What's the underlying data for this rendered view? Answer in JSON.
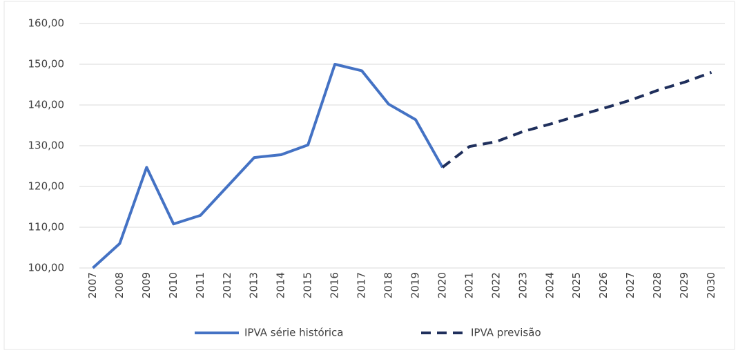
{
  "chart_data": {
    "type": "line",
    "categories": [
      "2007",
      "2008",
      "2009",
      "2010",
      "2011",
      "2012",
      "2013",
      "2014",
      "2015",
      "2016",
      "2017",
      "2018",
      "2019",
      "2020",
      "2021",
      "2022",
      "2023",
      "2024",
      "2025",
      "2026",
      "2027",
      "2028",
      "2029",
      "2030"
    ],
    "series": [
      {
        "name": "IPVA série histórica",
        "color": "#4472c4",
        "dash": false,
        "values": [
          100,
          106,
          124.7,
          110.8,
          112.9,
          120,
          127.1,
          127.8,
          130.2,
          150,
          148.4,
          140.2,
          136.4,
          124.7,
          null,
          null,
          null,
          null,
          null,
          null,
          null,
          null,
          null,
          null
        ]
      },
      {
        "name": "IPVA previsão",
        "color": "#1f2f5c",
        "dash": true,
        "values": [
          null,
          null,
          null,
          null,
          null,
          null,
          null,
          null,
          null,
          null,
          null,
          null,
          null,
          124.7,
          129.8,
          131,
          133.5,
          135.3,
          137.3,
          139.2,
          141.2,
          143.6,
          145.6,
          148
        ]
      }
    ],
    "ylim": [
      100,
      160
    ],
    "yticks": [
      {
        "value": 100,
        "label": "100,00"
      },
      {
        "value": 110,
        "label": "110,00"
      },
      {
        "value": 120,
        "label": "120,00"
      },
      {
        "value": 130,
        "label": "130,00"
      },
      {
        "value": 140,
        "label": "140,00"
      },
      {
        "value": 150,
        "label": "150,00"
      },
      {
        "value": 160,
        "label": "160,00"
      }
    ],
    "grid": true,
    "legend": "bottom"
  }
}
